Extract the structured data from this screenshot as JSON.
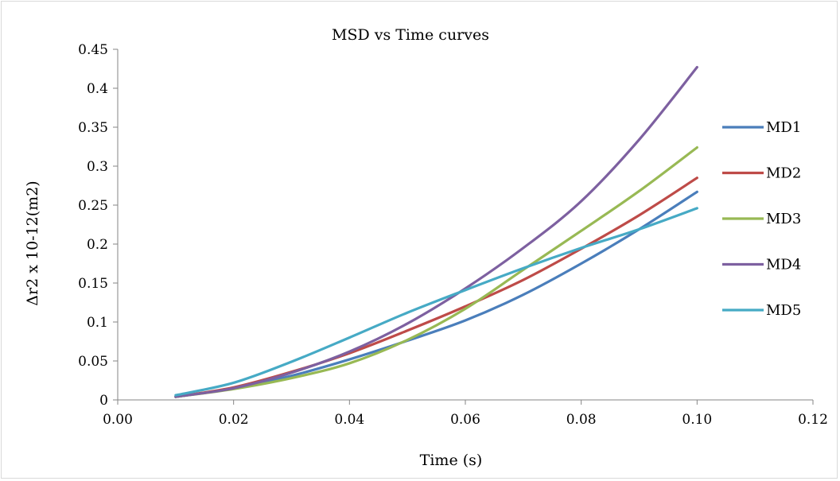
{
  "chart_data": {
    "type": "line",
    "title": "MSD vs Time curves",
    "xlabel": "Time (s)",
    "ylabel": "Δr2 x 10-12(m2)",
    "xlim": [
      0.0,
      0.12
    ],
    "ylim": [
      0,
      0.45
    ],
    "x_ticks": [
      "0.00",
      "0.02",
      "0.04",
      "0.06",
      "0.08",
      "0.10",
      "0.12"
    ],
    "y_ticks": [
      "0",
      "0.05",
      "0.1",
      "0.15",
      "0.2",
      "0.25",
      "0.3",
      "0.35",
      "0.4",
      "0.45"
    ],
    "grid": false,
    "legend_position": "right",
    "x": [
      0.01,
      0.02,
      0.03,
      0.04,
      0.05,
      0.06,
      0.07,
      0.08,
      0.09,
      0.1
    ],
    "series": [
      {
        "name": "MD1",
        "color": "#4A7EBB",
        "values": [
          0.004,
          0.015,
          0.031,
          0.052,
          0.076,
          0.102,
          0.135,
          0.175,
          0.219,
          0.267
        ]
      },
      {
        "name": "MD2",
        "color": "#BE4B48",
        "values": [
          0.004,
          0.016,
          0.036,
          0.06,
          0.089,
          0.12,
          0.154,
          0.194,
          0.237,
          0.285
        ]
      },
      {
        "name": "MD3",
        "color": "#98B954",
        "values": [
          0.004,
          0.014,
          0.028,
          0.047,
          0.077,
          0.117,
          0.167,
          0.217,
          0.268,
          0.324
        ]
      },
      {
        "name": "MD4",
        "color": "#7D60A0",
        "values": [
          0.004,
          0.015,
          0.035,
          0.062,
          0.098,
          0.143,
          0.195,
          0.255,
          0.334,
          0.427
        ]
      },
      {
        "name": "MD5",
        "color": "#46AAC5",
        "values": [
          0.006,
          0.022,
          0.049,
          0.08,
          0.112,
          0.141,
          0.169,
          0.195,
          0.219,
          0.246
        ]
      }
    ]
  }
}
